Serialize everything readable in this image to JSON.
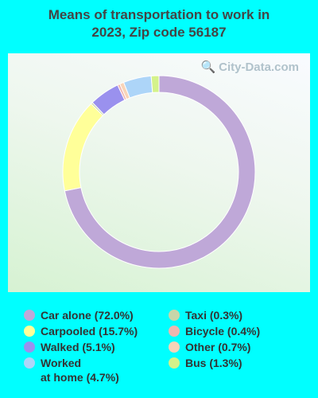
{
  "chart_data": {
    "type": "pie",
    "title": "Means of transportation to work in\n2023, Zip code 56187",
    "watermark": "City-Data.com",
    "slices": [
      {
        "label": "Car alone (72.0%)",
        "value": 72.0,
        "color": "#bfa8d8"
      },
      {
        "label": "Taxi (0.3%)",
        "value": 0.3,
        "color": "#c8d6a9"
      },
      {
        "label": "Carpooled (15.7%)",
        "value": 15.7,
        "color": "#ffff99"
      },
      {
        "label": "Bicycle (0.4%)",
        "value": 0.4,
        "color": "#f0b6b0"
      },
      {
        "label": "Walked (5.1%)",
        "value": 5.1,
        "color": "#9a91ee"
      },
      {
        "label": "Other (0.7%)",
        "value": 0.7,
        "color": "#f8d4b8"
      },
      {
        "label": "Worked\nat home (4.7%)",
        "value": 4.7,
        "color": "#add5f8"
      },
      {
        "label": "Bus (1.3%)",
        "value": 1.3,
        "color": "#d4f28a"
      }
    ]
  }
}
